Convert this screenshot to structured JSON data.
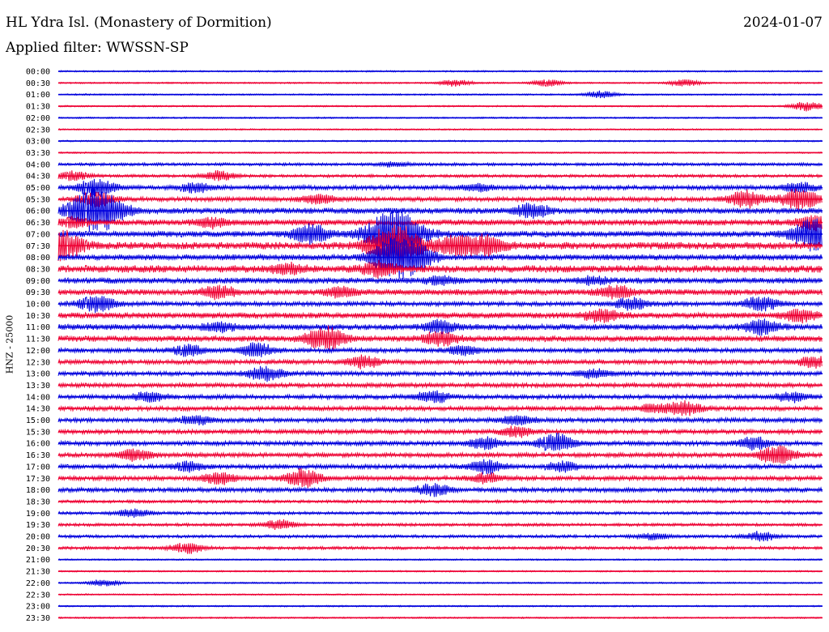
{
  "header": {
    "station": "HL Ydra Isl. (Monastery of Dormition)",
    "date": "2024-01-07",
    "filter": "Applied filter: WWSSN-SP"
  },
  "chart_data": {
    "type": "line",
    "title": "HL Ydra Isl. (Monastery of Dormition)",
    "subtitle": "Applied filter: WWSSN-SP",
    "ylabel": "HNZ - 25000",
    "xlabel": "",
    "rows": [
      "00:00",
      "00:30",
      "01:00",
      "01:30",
      "02:00",
      "02:30",
      "03:00",
      "03:30",
      "04:00",
      "04:30",
      "05:00",
      "05:30",
      "06:00",
      "06:30",
      "07:00",
      "07:30",
      "08:00",
      "08:30",
      "09:00",
      "09:30",
      "10:00",
      "10:30",
      "11:00",
      "11:30",
      "12:00",
      "12:30",
      "13:00",
      "13:30",
      "14:00",
      "14:30",
      "15:00",
      "15:30",
      "16:00",
      "16:30",
      "17:00",
      "17:30",
      "18:00",
      "18:30",
      "19:00",
      "19:30",
      "20:00",
      "20:30",
      "21:00",
      "21:30",
      "22:00",
      "22:30",
      "23:00",
      "23:30"
    ],
    "series_colors": [
      "#0000dd",
      "#ee0033"
    ],
    "noise_level": [
      1,
      1,
      1,
      1,
      1,
      1,
      1,
      1,
      2,
      2,
      3,
      3,
      4,
      4,
      4,
      5,
      4,
      5,
      4,
      4,
      3,
      4,
      4,
      4,
      3,
      3,
      3,
      3,
      3,
      3,
      3,
      3,
      3,
      3,
      3,
      3,
      3,
      2,
      2,
      2,
      2,
      2,
      1,
      1,
      1,
      1,
      1,
      1
    ],
    "events": [
      {
        "row": 1,
        "x": 0.52,
        "amp": 3
      },
      {
        "row": 1,
        "x": 0.64,
        "amp": 3
      },
      {
        "row": 1,
        "x": 0.82,
        "amp": 3
      },
      {
        "row": 2,
        "x": 0.71,
        "amp": 3
      },
      {
        "row": 3,
        "x": 0.98,
        "amp": 4
      },
      {
        "row": 8,
        "x": 0.44,
        "amp": 2
      },
      {
        "row": 9,
        "x": 0.02,
        "amp": 4
      },
      {
        "row": 9,
        "x": 0.21,
        "amp": 4
      },
      {
        "row": 10,
        "x": 0.05,
        "amp": 8
      },
      {
        "row": 10,
        "x": 0.18,
        "amp": 4
      },
      {
        "row": 10,
        "x": 0.55,
        "amp": 3
      },
      {
        "row": 10,
        "x": 0.97,
        "amp": 4
      },
      {
        "row": 11,
        "x": 0.05,
        "amp": 6
      },
      {
        "row": 11,
        "x": 0.34,
        "amp": 4
      },
      {
        "row": 11,
        "x": 0.9,
        "amp": 7
      },
      {
        "row": 11,
        "x": 0.97,
        "amp": 9
      },
      {
        "row": 12,
        "x": 0.05,
        "amp": 20
      },
      {
        "row": 12,
        "x": 0.62,
        "amp": 6
      },
      {
        "row": 13,
        "x": 0.02,
        "amp": 4
      },
      {
        "row": 13,
        "x": 0.2,
        "amp": 4
      },
      {
        "row": 13,
        "x": 0.99,
        "amp": 6
      },
      {
        "row": 14,
        "x": 0.33,
        "amp": 8
      },
      {
        "row": 14,
        "x": 0.44,
        "amp": 22
      },
      {
        "row": 14,
        "x": 0.99,
        "amp": 14
      },
      {
        "row": 15,
        "x": 0.0,
        "amp": 14
      },
      {
        "row": 15,
        "x": 0.44,
        "amp": 18
      },
      {
        "row": 15,
        "x": 0.52,
        "amp": 8
      },
      {
        "row": 15,
        "x": 0.56,
        "amp": 8
      },
      {
        "row": 16,
        "x": 0.44,
        "amp": 16
      },
      {
        "row": 16,
        "x": 0.47,
        "amp": 8
      },
      {
        "row": 17,
        "x": 0.42,
        "amp": 6
      },
      {
        "row": 17,
        "x": 0.3,
        "amp": 4
      },
      {
        "row": 18,
        "x": 0.5,
        "amp": 3
      },
      {
        "row": 18,
        "x": 0.7,
        "amp": 3
      },
      {
        "row": 19,
        "x": 0.21,
        "amp": 5
      },
      {
        "row": 19,
        "x": 0.37,
        "amp": 4
      },
      {
        "row": 19,
        "x": 0.73,
        "amp": 5
      },
      {
        "row": 20,
        "x": 0.05,
        "amp": 7
      },
      {
        "row": 20,
        "x": 0.75,
        "amp": 5
      },
      {
        "row": 20,
        "x": 0.92,
        "amp": 6
      },
      {
        "row": 21,
        "x": 0.71,
        "amp": 5
      },
      {
        "row": 21,
        "x": 0.97,
        "amp": 5
      },
      {
        "row": 22,
        "x": 0.21,
        "amp": 4
      },
      {
        "row": 22,
        "x": 0.5,
        "amp": 5
      },
      {
        "row": 22,
        "x": 0.92,
        "amp": 6
      },
      {
        "row": 23,
        "x": 0.35,
        "amp": 10
      },
      {
        "row": 23,
        "x": 0.5,
        "amp": 6
      },
      {
        "row": 24,
        "x": 0.17,
        "amp": 5
      },
      {
        "row": 24,
        "x": 0.26,
        "amp": 6
      },
      {
        "row": 24,
        "x": 0.53,
        "amp": 4
      },
      {
        "row": 25,
        "x": 0.4,
        "amp": 5
      },
      {
        "row": 25,
        "x": 0.99,
        "amp": 5
      },
      {
        "row": 26,
        "x": 0.27,
        "amp": 6
      },
      {
        "row": 26,
        "x": 0.7,
        "amp": 4
      },
      {
        "row": 28,
        "x": 0.12,
        "amp": 4
      },
      {
        "row": 28,
        "x": 0.49,
        "amp": 5
      },
      {
        "row": 28,
        "x": 0.96,
        "amp": 4
      },
      {
        "row": 29,
        "x": 0.82,
        "amp": 6
      },
      {
        "row": 29,
        "x": 0.78,
        "amp": 4
      },
      {
        "row": 30,
        "x": 0.18,
        "amp": 4
      },
      {
        "row": 30,
        "x": 0.6,
        "amp": 4
      },
      {
        "row": 31,
        "x": 0.6,
        "amp": 4
      },
      {
        "row": 32,
        "x": 0.56,
        "amp": 5
      },
      {
        "row": 32,
        "x": 0.65,
        "amp": 8
      },
      {
        "row": 32,
        "x": 0.91,
        "amp": 5
      },
      {
        "row": 33,
        "x": 0.1,
        "amp": 5
      },
      {
        "row": 33,
        "x": 0.94,
        "amp": 8
      },
      {
        "row": 34,
        "x": 0.17,
        "amp": 4
      },
      {
        "row": 34,
        "x": 0.56,
        "amp": 6
      },
      {
        "row": 34,
        "x": 0.66,
        "amp": 4
      },
      {
        "row": 35,
        "x": 0.21,
        "amp": 5
      },
      {
        "row": 35,
        "x": 0.32,
        "amp": 8
      },
      {
        "row": 35,
        "x": 0.56,
        "amp": 4
      },
      {
        "row": 36,
        "x": 0.49,
        "amp": 5
      },
      {
        "row": 38,
        "x": 0.1,
        "amp": 4
      },
      {
        "row": 39,
        "x": 0.29,
        "amp": 4
      },
      {
        "row": 40,
        "x": 0.78,
        "amp": 3
      },
      {
        "row": 40,
        "x": 0.92,
        "amp": 4
      },
      {
        "row": 41,
        "x": 0.17,
        "amp": 5
      },
      {
        "row": 44,
        "x": 0.06,
        "amp": 3
      }
    ]
  }
}
